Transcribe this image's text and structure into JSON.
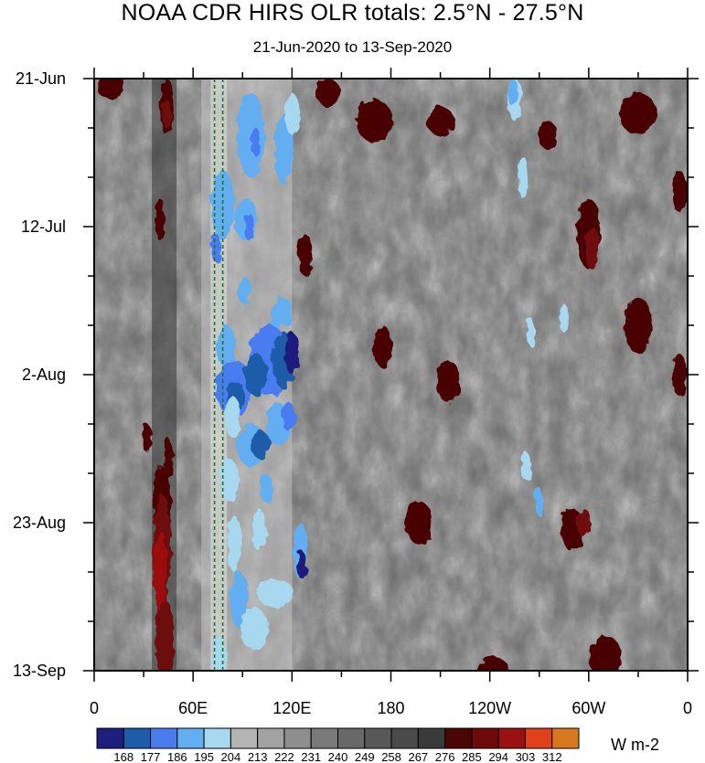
{
  "chart_data": {
    "type": "heatmap",
    "title": "NOAA CDR HIRS OLR totals: 2.5°N - 27.5°N",
    "subtitle": "21-Jun-2020 to 13-Sep-2020",
    "xlabel": "",
    "ylabel": "",
    "x_ticks": [
      {
        "label": "0",
        "lon": 0
      },
      {
        "label": "60E",
        "lon": 60
      },
      {
        "label": "120E",
        "lon": 120
      },
      {
        "label": "180",
        "lon": 180
      },
      {
        "label": "120W",
        "lon": 240
      },
      {
        "label": "60W",
        "lon": 300
      },
      {
        "label": "0",
        "lon": 360
      }
    ],
    "xlim": [
      0,
      360
    ],
    "y_ticks": [
      {
        "label": "21-Jun",
        "day": 0
      },
      {
        "label": "12-Jul",
        "day": 21
      },
      {
        "label": "2-Aug",
        "day": 42
      },
      {
        "label": "23-Aug",
        "day": 63
      },
      {
        "label": "13-Sep",
        "day": 84
      }
    ],
    "ylim": [
      "21-Jun-2020",
      "13-Sep-2020"
    ],
    "y_direction": "time increases downward",
    "reference_lines_lon": [
      73,
      78
    ],
    "colorbar": {
      "levels": [
        168,
        177,
        186,
        195,
        204,
        213,
        222,
        231,
        240,
        249,
        258,
        267,
        276,
        285,
        294,
        303,
        312
      ],
      "colors": [
        "#1e1e7e",
        "#1d5ca8",
        "#4a7cf0",
        "#62aef0",
        "#a8d8f0",
        "#b4b4b4",
        "#a2a2a2",
        "#8e8e8e",
        "#7a7a7a",
        "#686868",
        "#585858",
        "#4a4a4a",
        "#3a3a3a",
        "#4a0505",
        "#6e0a0a",
        "#9b1111",
        "#e0401a",
        "#d7781e"
      ],
      "units": "W m-2"
    },
    "features": [
      {
        "desc": "low OLR convective band",
        "lon_range": [
          65,
          120
        ],
        "value_range": [
          168,
          213
        ]
      },
      {
        "desc": "high OLR dry band",
        "lon_range": [
          35,
          50
        ],
        "value_range": [
          285,
          303
        ]
      }
    ]
  }
}
